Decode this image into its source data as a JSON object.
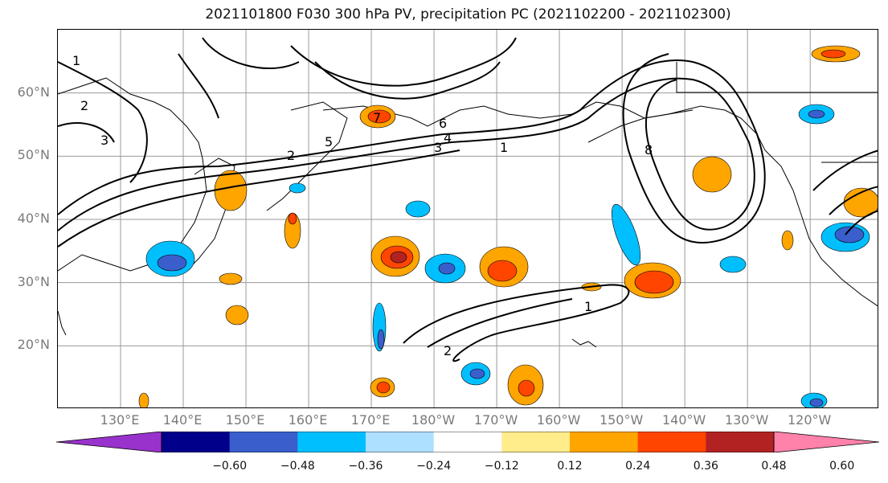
{
  "title": "2021101800 F030 300 hPa PV, precipitation PC (2021102200 - 2021102300)",
  "lat_labels": [
    "60°N",
    "50°N",
    "40°N",
    "30°N",
    "20°N"
  ],
  "lon_labels": [
    "130°E",
    "140°E",
    "150°E",
    "160°E",
    "170°E",
    "180°W",
    "170°W",
    "160°W",
    "150°W",
    "140°W",
    "130°W",
    "120°W"
  ],
  "map": {
    "lon_range": [
      120,
      251
    ],
    "lat_range": [
      10,
      70
    ],
    "grid": true,
    "pv_contour_labels": [
      "1",
      "2",
      "3",
      "4",
      "5",
      "6",
      "7",
      "8"
    ]
  },
  "colorbar": {
    "colors": [
      "#9932CC",
      "#00008B",
      "#3A5FCD",
      "#00BFFF",
      "#ADDFFF",
      "#FFFFFF",
      "#FFEC8B",
      "#FFA500",
      "#FF4500",
      "#B22222",
      "#FF82AB"
    ],
    "tick_labels": [
      "−0.60",
      "−0.48",
      "−0.36",
      "−0.24",
      "−0.12",
      "0.12",
      "0.24",
      "0.36",
      "0.48",
      "0.60"
    ]
  }
}
